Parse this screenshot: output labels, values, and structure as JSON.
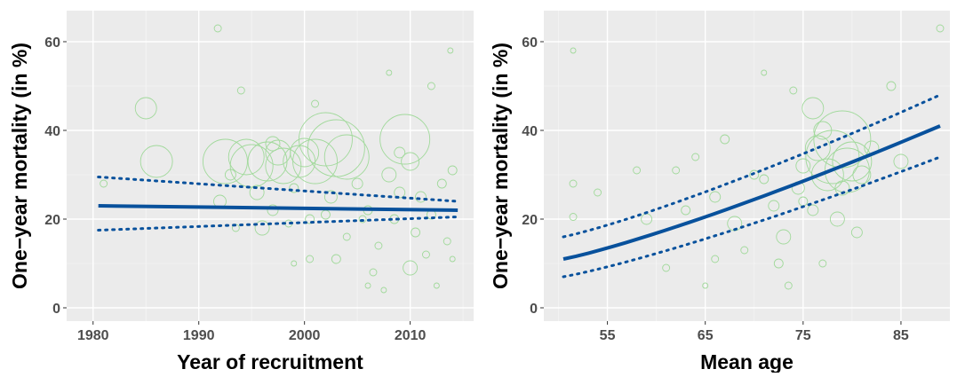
{
  "colors": {
    "panel_bg": "#ebebeb",
    "grid_major": "#ffffff",
    "point": "#a1d99b",
    "line": "#08519c"
  },
  "chart_data": [
    {
      "type": "scatter",
      "title": "",
      "xlabel": "Year of recruitment",
      "ylabel": "One−year mortality (in %)",
      "xlim": [
        1977.5,
        2016
      ],
      "ylim": [
        -3,
        67
      ],
      "xticks": [
        1980,
        1990,
        2000,
        2010
      ],
      "xtick_labels": [
        "1980",
        "1990",
        "2000",
        "2010"
      ],
      "yticks": [
        0,
        20,
        40,
        60
      ],
      "ytick_labels": [
        "0",
        "20",
        "40",
        "60"
      ],
      "grid": true,
      "points_note_size_is_weight": true,
      "points": [
        {
          "x": 1985,
          "y": 45,
          "s": 12
        },
        {
          "x": 1986,
          "y": 33,
          "s": 18
        },
        {
          "x": 1981,
          "y": 28,
          "s": 4
        },
        {
          "x": 1991.8,
          "y": 63,
          "s": 4
        },
        {
          "x": 1992,
          "y": 24,
          "s": 7
        },
        {
          "x": 1992.5,
          "y": 33,
          "s": 25
        },
        {
          "x": 1993,
          "y": 30,
          "s": 6
        },
        {
          "x": 1993.5,
          "y": 18,
          "s": 4
        },
        {
          "x": 1994,
          "y": 49,
          "s": 4
        },
        {
          "x": 1994.5,
          "y": 34,
          "s": 20
        },
        {
          "x": 1995,
          "y": 32,
          "s": 24
        },
        {
          "x": 1995.5,
          "y": 26,
          "s": 8
        },
        {
          "x": 1996,
          "y": 18,
          "s": 8
        },
        {
          "x": 1996.5,
          "y": 33,
          "s": 22
        },
        {
          "x": 1997,
          "y": 22,
          "s": 6
        },
        {
          "x": 1997.5,
          "y": 35,
          "s": 14
        },
        {
          "x": 1998,
          "y": 32,
          "s": 20
        },
        {
          "x": 1998.5,
          "y": 19,
          "s": 4
        },
        {
          "x": 1999,
          "y": 27,
          "s": 5
        },
        {
          "x": 1999,
          "y": 10,
          "s": 3
        },
        {
          "x": 1999.5,
          "y": 33,
          "s": 18
        },
        {
          "x": 2000,
          "y": 35,
          "s": 16
        },
        {
          "x": 2000.5,
          "y": 20,
          "s": 5
        },
        {
          "x": 2000.5,
          "y": 11,
          "s": 4
        },
        {
          "x": 2001,
          "y": 46,
          "s": 4
        },
        {
          "x": 2001,
          "y": 33,
          "s": 25
        },
        {
          "x": 2002,
          "y": 38,
          "s": 30
        },
        {
          "x": 2002.5,
          "y": 25,
          "s": 7
        },
        {
          "x": 2003,
          "y": 11,
          "s": 5
        },
        {
          "x": 2003,
          "y": 36,
          "s": 32
        },
        {
          "x": 2004,
          "y": 34,
          "s": 25
        },
        {
          "x": 2004,
          "y": 16,
          "s": 4
        },
        {
          "x": 2005,
          "y": 28,
          "s": 6
        },
        {
          "x": 2005.5,
          "y": 20,
          "s": 4
        },
        {
          "x": 2006,
          "y": 22,
          "s": 5
        },
        {
          "x": 2006.5,
          "y": 8,
          "s": 4
        },
        {
          "x": 2006,
          "y": 5,
          "s": 3
        },
        {
          "x": 2007,
          "y": 14,
          "s": 4
        },
        {
          "x": 2007.5,
          "y": 4,
          "s": 3
        },
        {
          "x": 2008,
          "y": 53,
          "s": 3
        },
        {
          "x": 2008,
          "y": 30,
          "s": 8
        },
        {
          "x": 2008.5,
          "y": 20,
          "s": 5
        },
        {
          "x": 2009,
          "y": 26,
          "s": 6
        },
        {
          "x": 2009.5,
          "y": 38,
          "s": 28
        },
        {
          "x": 2010,
          "y": 33,
          "s": 10
        },
        {
          "x": 2010,
          "y": 9,
          "s": 8
        },
        {
          "x": 2010.5,
          "y": 17,
          "s": 5
        },
        {
          "x": 2011,
          "y": 25,
          "s": 6
        },
        {
          "x": 2011.5,
          "y": 12,
          "s": 4
        },
        {
          "x": 2012,
          "y": 50,
          "s": 4
        },
        {
          "x": 2012,
          "y": 21,
          "s": 5
        },
        {
          "x": 2012.5,
          "y": 5,
          "s": 3
        },
        {
          "x": 2013,
          "y": 28,
          "s": 5
        },
        {
          "x": 2013.5,
          "y": 15,
          "s": 4
        },
        {
          "x": 2013.8,
          "y": 58,
          "s": 3
        },
        {
          "x": 2014,
          "y": 31,
          "s": 5
        },
        {
          "x": 2014,
          "y": 11,
          "s": 3
        },
        {
          "x": 2002,
          "y": 21,
          "s": 5
        },
        {
          "x": 1997,
          "y": 37,
          "s": 8
        },
        {
          "x": 2009,
          "y": 35,
          "s": 6
        }
      ],
      "fit": {
        "x": [
          1980.5,
          2014.5
        ],
        "y": [
          23,
          22
        ]
      },
      "ci_lower": {
        "x": [
          1980.5,
          2014.5
        ],
        "y": [
          17.5,
          20.5
        ]
      },
      "ci_upper": {
        "x": [
          1980.5,
          2014.5
        ],
        "y": [
          29.5,
          24
        ]
      }
    },
    {
      "type": "scatter",
      "title": "",
      "xlabel": "Mean age",
      "ylabel": "One−year mortality (in %)",
      "xlim": [
        48.5,
        90
      ],
      "ylim": [
        -3,
        67
      ],
      "xticks": [
        55,
        65,
        75,
        85
      ],
      "xtick_labels": [
        "55",
        "65",
        "75",
        "85"
      ],
      "yticks": [
        0,
        20,
        40,
        60
      ],
      "ytick_labels": [
        "0",
        "20",
        "40",
        "60"
      ],
      "grid": true,
      "points": [
        {
          "x": 51.5,
          "y": 58,
          "s": 3
        },
        {
          "x": 51.5,
          "y": 28,
          "s": 4
        },
        {
          "x": 51.5,
          "y": 20.5,
          "s": 4
        },
        {
          "x": 54,
          "y": 26,
          "s": 4
        },
        {
          "x": 58,
          "y": 31,
          "s": 4
        },
        {
          "x": 59,
          "y": 20,
          "s": 6
        },
        {
          "x": 61,
          "y": 9,
          "s": 4
        },
        {
          "x": 62,
          "y": 31,
          "s": 4
        },
        {
          "x": 63,
          "y": 22,
          "s": 5
        },
        {
          "x": 64,
          "y": 34,
          "s": 4
        },
        {
          "x": 65,
          "y": 5,
          "s": 3
        },
        {
          "x": 66,
          "y": 25,
          "s": 6
        },
        {
          "x": 67,
          "y": 38,
          "s": 5
        },
        {
          "x": 68,
          "y": 19,
          "s": 8
        },
        {
          "x": 69,
          "y": 13,
          "s": 4
        },
        {
          "x": 70,
          "y": 30,
          "s": 5
        },
        {
          "x": 71,
          "y": 53,
          "s": 3
        },
        {
          "x": 72,
          "y": 23,
          "s": 6
        },
        {
          "x": 72.5,
          "y": 10,
          "s": 5
        },
        {
          "x": 73,
          "y": 16,
          "s": 8
        },
        {
          "x": 73.5,
          "y": 5,
          "s": 4
        },
        {
          "x": 74,
          "y": 49,
          "s": 4
        },
        {
          "x": 74.5,
          "y": 27,
          "s": 7
        },
        {
          "x": 75,
          "y": 32,
          "s": 8
        },
        {
          "x": 76,
          "y": 45,
          "s": 12
        },
        {
          "x": 76,
          "y": 22,
          "s": 6
        },
        {
          "x": 76.5,
          "y": 36,
          "s": 14
        },
        {
          "x": 77,
          "y": 10,
          "s": 4
        },
        {
          "x": 77.5,
          "y": 30,
          "s": 18
        },
        {
          "x": 78,
          "y": 34,
          "s": 30
        },
        {
          "x": 78.5,
          "y": 20,
          "s": 8
        },
        {
          "x": 79,
          "y": 38,
          "s": 32
        },
        {
          "x": 79.5,
          "y": 31,
          "s": 25
        },
        {
          "x": 80,
          "y": 33,
          "s": 22
        },
        {
          "x": 80.5,
          "y": 17,
          "s": 6
        },
        {
          "x": 81,
          "y": 30,
          "s": 10
        },
        {
          "x": 82,
          "y": 36,
          "s": 8
        },
        {
          "x": 84,
          "y": 50,
          "s": 5
        },
        {
          "x": 85,
          "y": 33,
          "s": 8
        },
        {
          "x": 89,
          "y": 63,
          "s": 4
        },
        {
          "x": 71,
          "y": 29,
          "s": 5
        },
        {
          "x": 66,
          "y": 11,
          "s": 4
        },
        {
          "x": 77,
          "y": 40,
          "s": 10
        },
        {
          "x": 79,
          "y": 27,
          "s": 8
        },
        {
          "x": 75,
          "y": 24,
          "s": 5
        }
      ],
      "fit": {
        "x": [
          50.5,
          89
        ],
        "y": [
          11,
          41
        ]
      },
      "ci_lower": {
        "x": [
          50.5,
          89
        ],
        "y": [
          7,
          34
        ]
      },
      "ci_upper": {
        "x": [
          50.5,
          89
        ],
        "y": [
          16,
          48
        ]
      }
    }
  ]
}
